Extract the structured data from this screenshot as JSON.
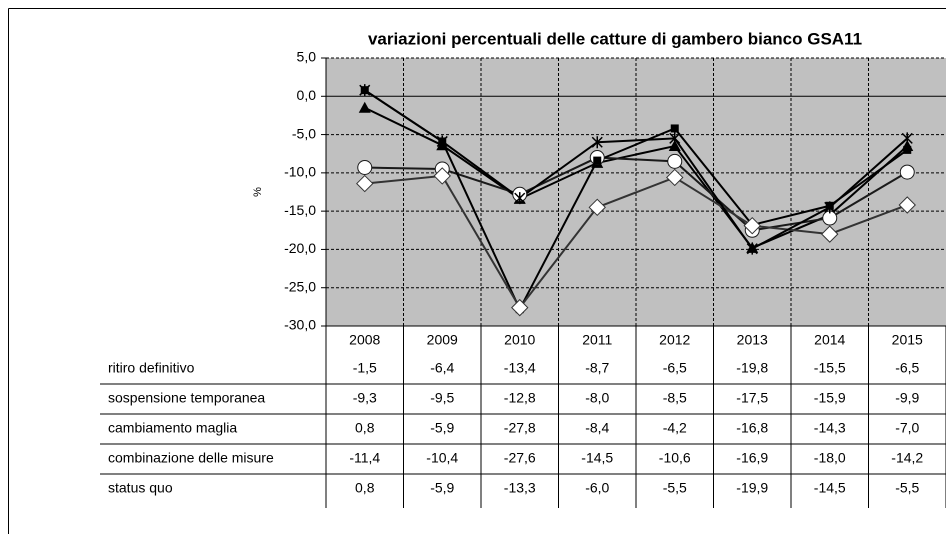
{
  "chart_data": {
    "type": "line",
    "title": "variazioni percentuali delle catture di gambero bianco GSA11",
    "y_label": "%",
    "categories": [
      "2008",
      "2009",
      "2010",
      "2011",
      "2012",
      "2013",
      "2014",
      "2015"
    ],
    "ylim": [
      -30,
      5
    ],
    "yticks": [
      {
        "value": 5,
        "label": "5,0"
      },
      {
        "value": 0,
        "label": "0,0"
      },
      {
        "value": -5,
        "label": "-5,0"
      },
      {
        "value": -10,
        "label": "-10,0"
      },
      {
        "value": -15,
        "label": "-15,0"
      },
      {
        "value": -20,
        "label": "-20,0"
      },
      {
        "value": -25,
        "label": "-25,0"
      },
      {
        "value": -30,
        "label": "-30,0"
      }
    ],
    "grid": true,
    "plot_background": "#c0c0c0",
    "series": [
      {
        "name": "ritiro definitivo",
        "color": "#000000",
        "marker": "triangle",
        "values": [
          -1.5,
          -6.4,
          -13.4,
          -8.7,
          -6.5,
          -19.8,
          -15.5,
          -6.5
        ],
        "value_labels": [
          "-1,5",
          "-6,4",
          "-13,4",
          "-8,7",
          "-6,5",
          "-19,8",
          "-15,5",
          "-6,5"
        ]
      },
      {
        "name": "sospensione temporanea",
        "color": "#1a1a1a",
        "marker": "circle",
        "values": [
          -9.3,
          -9.5,
          -12.8,
          -8.0,
          -8.5,
          -17.5,
          -15.9,
          -9.9
        ],
        "value_labels": [
          "-9,3",
          "-9,5",
          "-12,8",
          "-8,0",
          "-8,5",
          "-17,5",
          "-15,9",
          "-9,9"
        ]
      },
      {
        "name": "cambiamento maglia",
        "color": "#000000",
        "marker": "square",
        "values": [
          0.8,
          -5.9,
          -27.8,
          -8.4,
          -4.2,
          -16.8,
          -14.3,
          -7.0
        ],
        "value_labels": [
          "0,8",
          "-5,9",
          "-27,8",
          "-8,4",
          "-4,2",
          "-16,8",
          "-14,3",
          "-7,0"
        ]
      },
      {
        "name": "combinazione delle misure",
        "color": "#333333",
        "marker": "diamond",
        "values": [
          -11.4,
          -10.4,
          -27.6,
          -14.5,
          -10.6,
          -16.9,
          -18.0,
          -14.2
        ],
        "value_labels": [
          "-11,4",
          "-10,4",
          "-27,6",
          "-14,5",
          "-10,6",
          "-16,9",
          "-18,0",
          "-14,2"
        ]
      },
      {
        "name": "status quo",
        "color": "#000000",
        "marker": "star",
        "values": [
          0.8,
          -5.9,
          -13.3,
          -6.0,
          -5.5,
          -19.9,
          -14.5,
          -5.5
        ],
        "value_labels": [
          "0,8",
          "-5,9",
          "-13,3",
          "-6,0",
          "-5,5",
          "-19,9",
          "-14,5",
          "-5,5"
        ]
      }
    ]
  }
}
